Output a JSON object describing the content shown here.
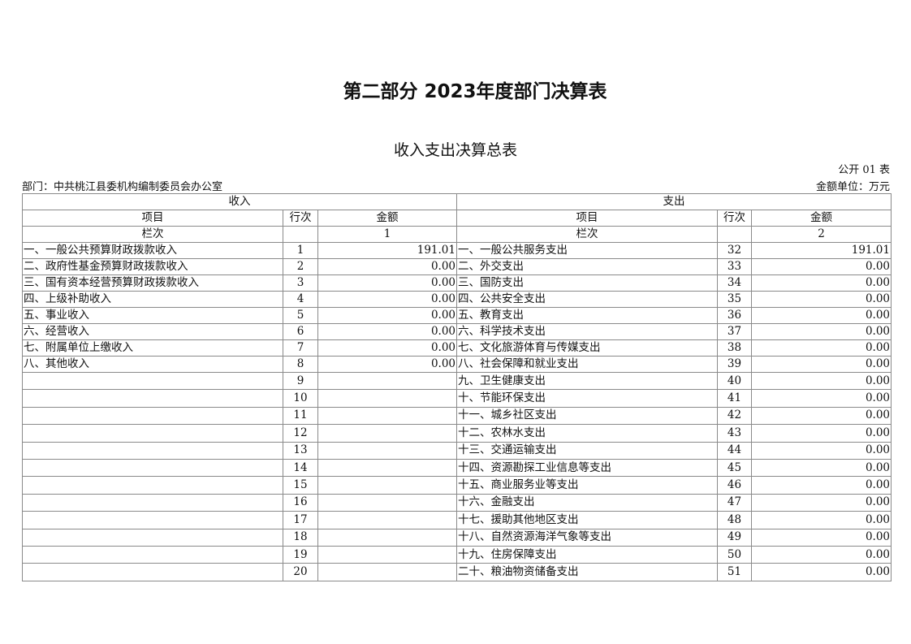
{
  "title": "第二部分 2023年度部门决算表",
  "subtitle": "收入支出决算总表",
  "table_code": "公开 01 表",
  "department": "部门：中共桃江县委机构编制委员会办公室",
  "unit": "金额单位：万元",
  "header": {
    "income": "收入",
    "expense": "支出",
    "item": "项目",
    "line": "行次",
    "amount": "金额",
    "column_label": "栏次",
    "income_col": "1",
    "expense_col": "2"
  },
  "rows": [
    {
      "in_item": "一、一般公共预算财政拨款收入",
      "in_line": "1",
      "in_amount": "191.01",
      "ex_item": "一、一般公共服务支出",
      "ex_line": "32",
      "ex_amount": "191.01"
    },
    {
      "in_item": "二、政府性基金预算财政拨款收入",
      "in_line": "2",
      "in_amount": "0.00",
      "ex_item": "二、外交支出",
      "ex_line": "33",
      "ex_amount": "0.00"
    },
    {
      "in_item": "三、国有资本经营预算财政拨款收入",
      "in_line": "3",
      "in_amount": "0.00",
      "ex_item": "三、国防支出",
      "ex_line": "34",
      "ex_amount": "0.00"
    },
    {
      "in_item": "四、上级补助收入",
      "in_line": "4",
      "in_amount": "0.00",
      "ex_item": "四、公共安全支出",
      "ex_line": "35",
      "ex_amount": "0.00"
    },
    {
      "in_item": "五、事业收入",
      "in_line": "5",
      "in_amount": "0.00",
      "ex_item": "五、教育支出",
      "ex_line": "36",
      "ex_amount": "0.00"
    },
    {
      "in_item": "六、经营收入",
      "in_line": "6",
      "in_amount": "0.00",
      "ex_item": "六、科学技术支出",
      "ex_line": "37",
      "ex_amount": "0.00"
    },
    {
      "in_item": "七、附属单位上缴收入",
      "in_line": "7",
      "in_amount": "0.00",
      "ex_item": "七、文化旅游体育与传媒支出",
      "ex_line": "38",
      "ex_amount": "0.00"
    },
    {
      "in_item": "八、其他收入",
      "in_line": "8",
      "in_amount": "0.00",
      "ex_item": "八、社会保障和就业支出",
      "ex_line": "39",
      "ex_amount": "0.00"
    },
    {
      "in_item": "",
      "in_line": "9",
      "in_amount": "",
      "ex_item": "九、卫生健康支出",
      "ex_line": "40",
      "ex_amount": "0.00"
    },
    {
      "in_item": "",
      "in_line": "10",
      "in_amount": "",
      "ex_item": "十、节能环保支出",
      "ex_line": "41",
      "ex_amount": "0.00"
    },
    {
      "in_item": "",
      "in_line": "11",
      "in_amount": "",
      "ex_item": "十一、城乡社区支出",
      "ex_line": "42",
      "ex_amount": "0.00"
    },
    {
      "in_item": "",
      "in_line": "12",
      "in_amount": "",
      "ex_item": "十二、农林水支出",
      "ex_line": "43",
      "ex_amount": "0.00"
    },
    {
      "in_item": "",
      "in_line": "13",
      "in_amount": "",
      "ex_item": "十三、交通运输支出",
      "ex_line": "44",
      "ex_amount": "0.00"
    },
    {
      "in_item": "",
      "in_line": "14",
      "in_amount": "",
      "ex_item": "十四、资源勘探工业信息等支出",
      "ex_line": "45",
      "ex_amount": "0.00"
    },
    {
      "in_item": "",
      "in_line": "15",
      "in_amount": "",
      "ex_item": "十五、商业服务业等支出",
      "ex_line": "46",
      "ex_amount": "0.00"
    },
    {
      "in_item": "",
      "in_line": "16",
      "in_amount": "",
      "ex_item": "十六、金融支出",
      "ex_line": "47",
      "ex_amount": "0.00"
    },
    {
      "in_item": "",
      "in_line": "17",
      "in_amount": "",
      "ex_item": "十七、援助其他地区支出",
      "ex_line": "48",
      "ex_amount": "0.00"
    },
    {
      "in_item": "",
      "in_line": "18",
      "in_amount": "",
      "ex_item": "十八、自然资源海洋气象等支出",
      "ex_line": "49",
      "ex_amount": "0.00"
    },
    {
      "in_item": "",
      "in_line": "19",
      "in_amount": "",
      "ex_item": "十九、住房保障支出",
      "ex_line": "50",
      "ex_amount": "0.00"
    },
    {
      "in_item": "",
      "in_line": "20",
      "in_amount": "",
      "ex_item": "二十、粮油物资储备支出",
      "ex_line": "51",
      "ex_amount": "0.00"
    }
  ]
}
